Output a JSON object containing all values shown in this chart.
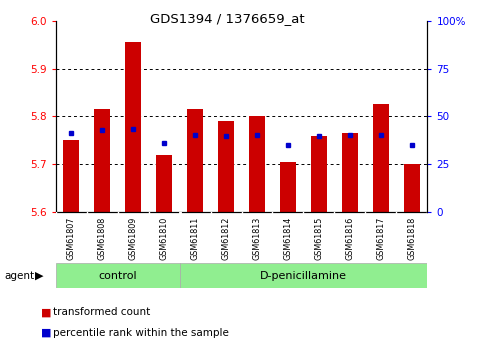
{
  "title": "GDS1394 / 1376659_at",
  "samples": [
    "GSM61807",
    "GSM61808",
    "GSM61809",
    "GSM61810",
    "GSM61811",
    "GSM61812",
    "GSM61813",
    "GSM61814",
    "GSM61815",
    "GSM61816",
    "GSM61817",
    "GSM61818"
  ],
  "red_values": [
    5.75,
    5.815,
    5.955,
    5.72,
    5.815,
    5.79,
    5.8,
    5.705,
    5.76,
    5.765,
    5.825,
    5.7
  ],
  "blue_values": [
    5.765,
    5.772,
    5.773,
    5.745,
    5.762,
    5.76,
    5.762,
    5.74,
    5.76,
    5.762,
    5.762,
    5.74
  ],
  "ylim_left": [
    5.6,
    6.0
  ],
  "ylim_right": [
    0,
    100
  ],
  "yticks_left": [
    5.6,
    5.7,
    5.8,
    5.9,
    6.0
  ],
  "yticks_right": [
    0,
    25,
    50,
    75,
    100
  ],
  "bar_color": "#cc0000",
  "dot_color": "#0000cc",
  "background_color": "#ffffff",
  "plot_bg": "#ffffff",
  "n_control": 4,
  "n_treatment": 8,
  "control_label": "control",
  "treatment_label": "D-penicillamine",
  "agent_label": "agent",
  "legend_red": "transformed count",
  "legend_blue": "percentile rank within the sample",
  "bar_width": 0.5,
  "base_value": 5.6,
  "grid_lines": [
    5.7,
    5.8,
    5.9
  ],
  "right_tick_labels": [
    "0",
    "25",
    "50",
    "75",
    "100%"
  ]
}
